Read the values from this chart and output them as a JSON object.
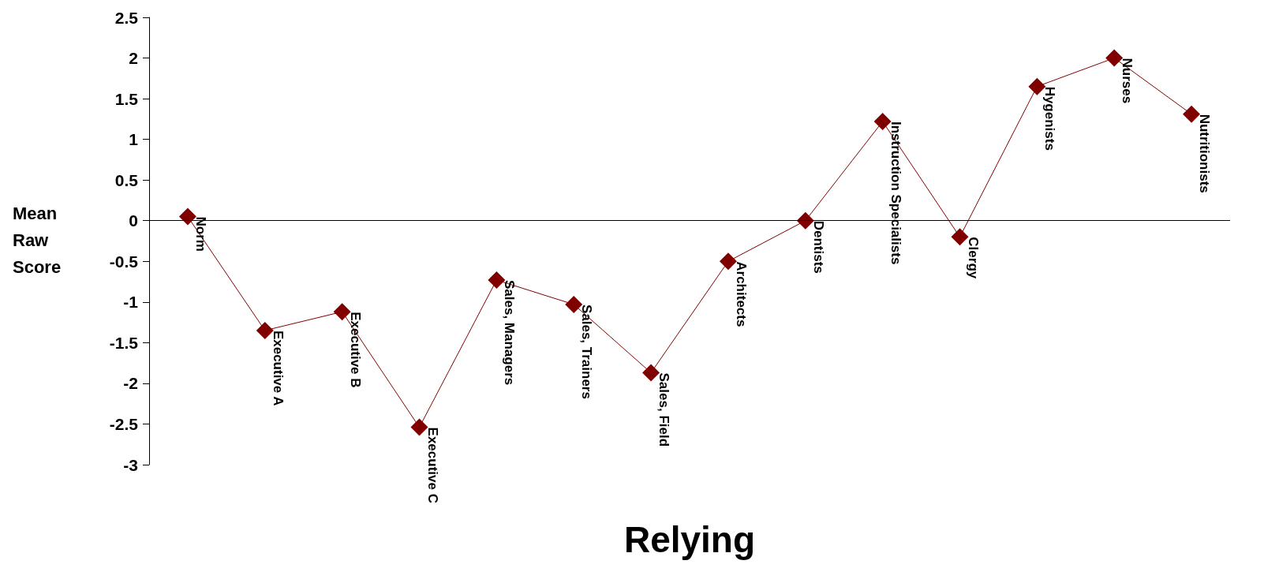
{
  "chart_data": {
    "type": "line",
    "xlabel": "Relying",
    "ylabel": "Mean Raw Score",
    "categories": [
      "Norm",
      "Executive A",
      "Executive B",
      "Executive C",
      "Sales, Managers",
      "Sales, Trainers",
      "Sales, Field",
      "Architects",
      "Dentists",
      "Instruction Specialists",
      "Clergy",
      "Hygenists",
      "Nurses",
      "Nutritionists"
    ],
    "series": [
      {
        "color": "#800000",
        "values": [
          0.05,
          -1.35,
          -1.12,
          -2.54,
          -0.73,
          -1.03,
          -1.87,
          -0.5,
          0,
          1.22,
          -0.2,
          1.65,
          2.0,
          1.31
        ]
      }
    ],
    "ylim": [
      -3,
      2.5
    ],
    "yticks": [
      -3,
      -2.5,
      -2,
      -1.5,
      -1,
      -0.5,
      0,
      0.5,
      1,
      1.5,
      2,
      2.5
    ],
    "ref_lines": [
      {
        "axis": "y",
        "value": 0,
        "color": "#000000"
      }
    ],
    "grid": false,
    "marker": "diamond",
    "line_style": "solid",
    "tick_labels": "y"
  }
}
